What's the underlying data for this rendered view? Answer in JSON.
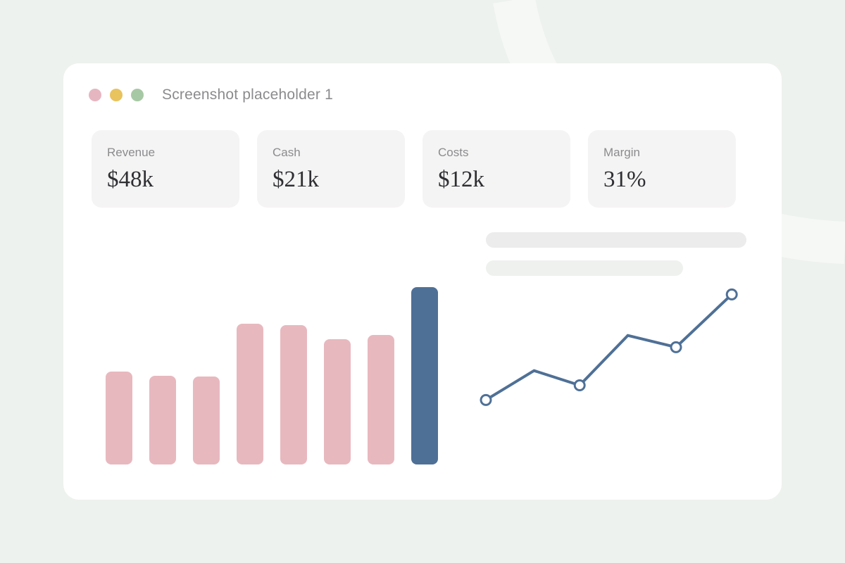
{
  "window": {
    "title": "Screenshot placeholder 1",
    "controls": [
      {
        "name": "window-close-dot",
        "color": "#e6b6c0"
      },
      {
        "name": "window-minimize-dot",
        "color": "#e8c35e"
      },
      {
        "name": "window-maximize-dot",
        "color": "#a7c8a4"
      }
    ]
  },
  "metrics": [
    {
      "label": "Revenue",
      "value": "$48k"
    },
    {
      "label": "Cash",
      "value": "$21k"
    },
    {
      "label": "Costs",
      "value": "$12k"
    },
    {
      "label": "Margin",
      "value": "31%"
    }
  ],
  "colors": {
    "bar": "#e8b8bf",
    "bar_highlight": "#4f7096",
    "line": "#4f7096",
    "background": "#eef2ee"
  },
  "chart_data": [
    {
      "type": "bar",
      "values": [
        132,
        126,
        125,
        200,
        198,
        178,
        184,
        252
      ],
      "highlight_index": 7,
      "ylim": [
        0,
        260
      ]
    },
    {
      "type": "line",
      "values": [
        50,
        100,
        75,
        160,
        140,
        230
      ],
      "markers": [
        true,
        false,
        true,
        false,
        true,
        true
      ],
      "ylim": [
        0,
        240
      ]
    }
  ]
}
